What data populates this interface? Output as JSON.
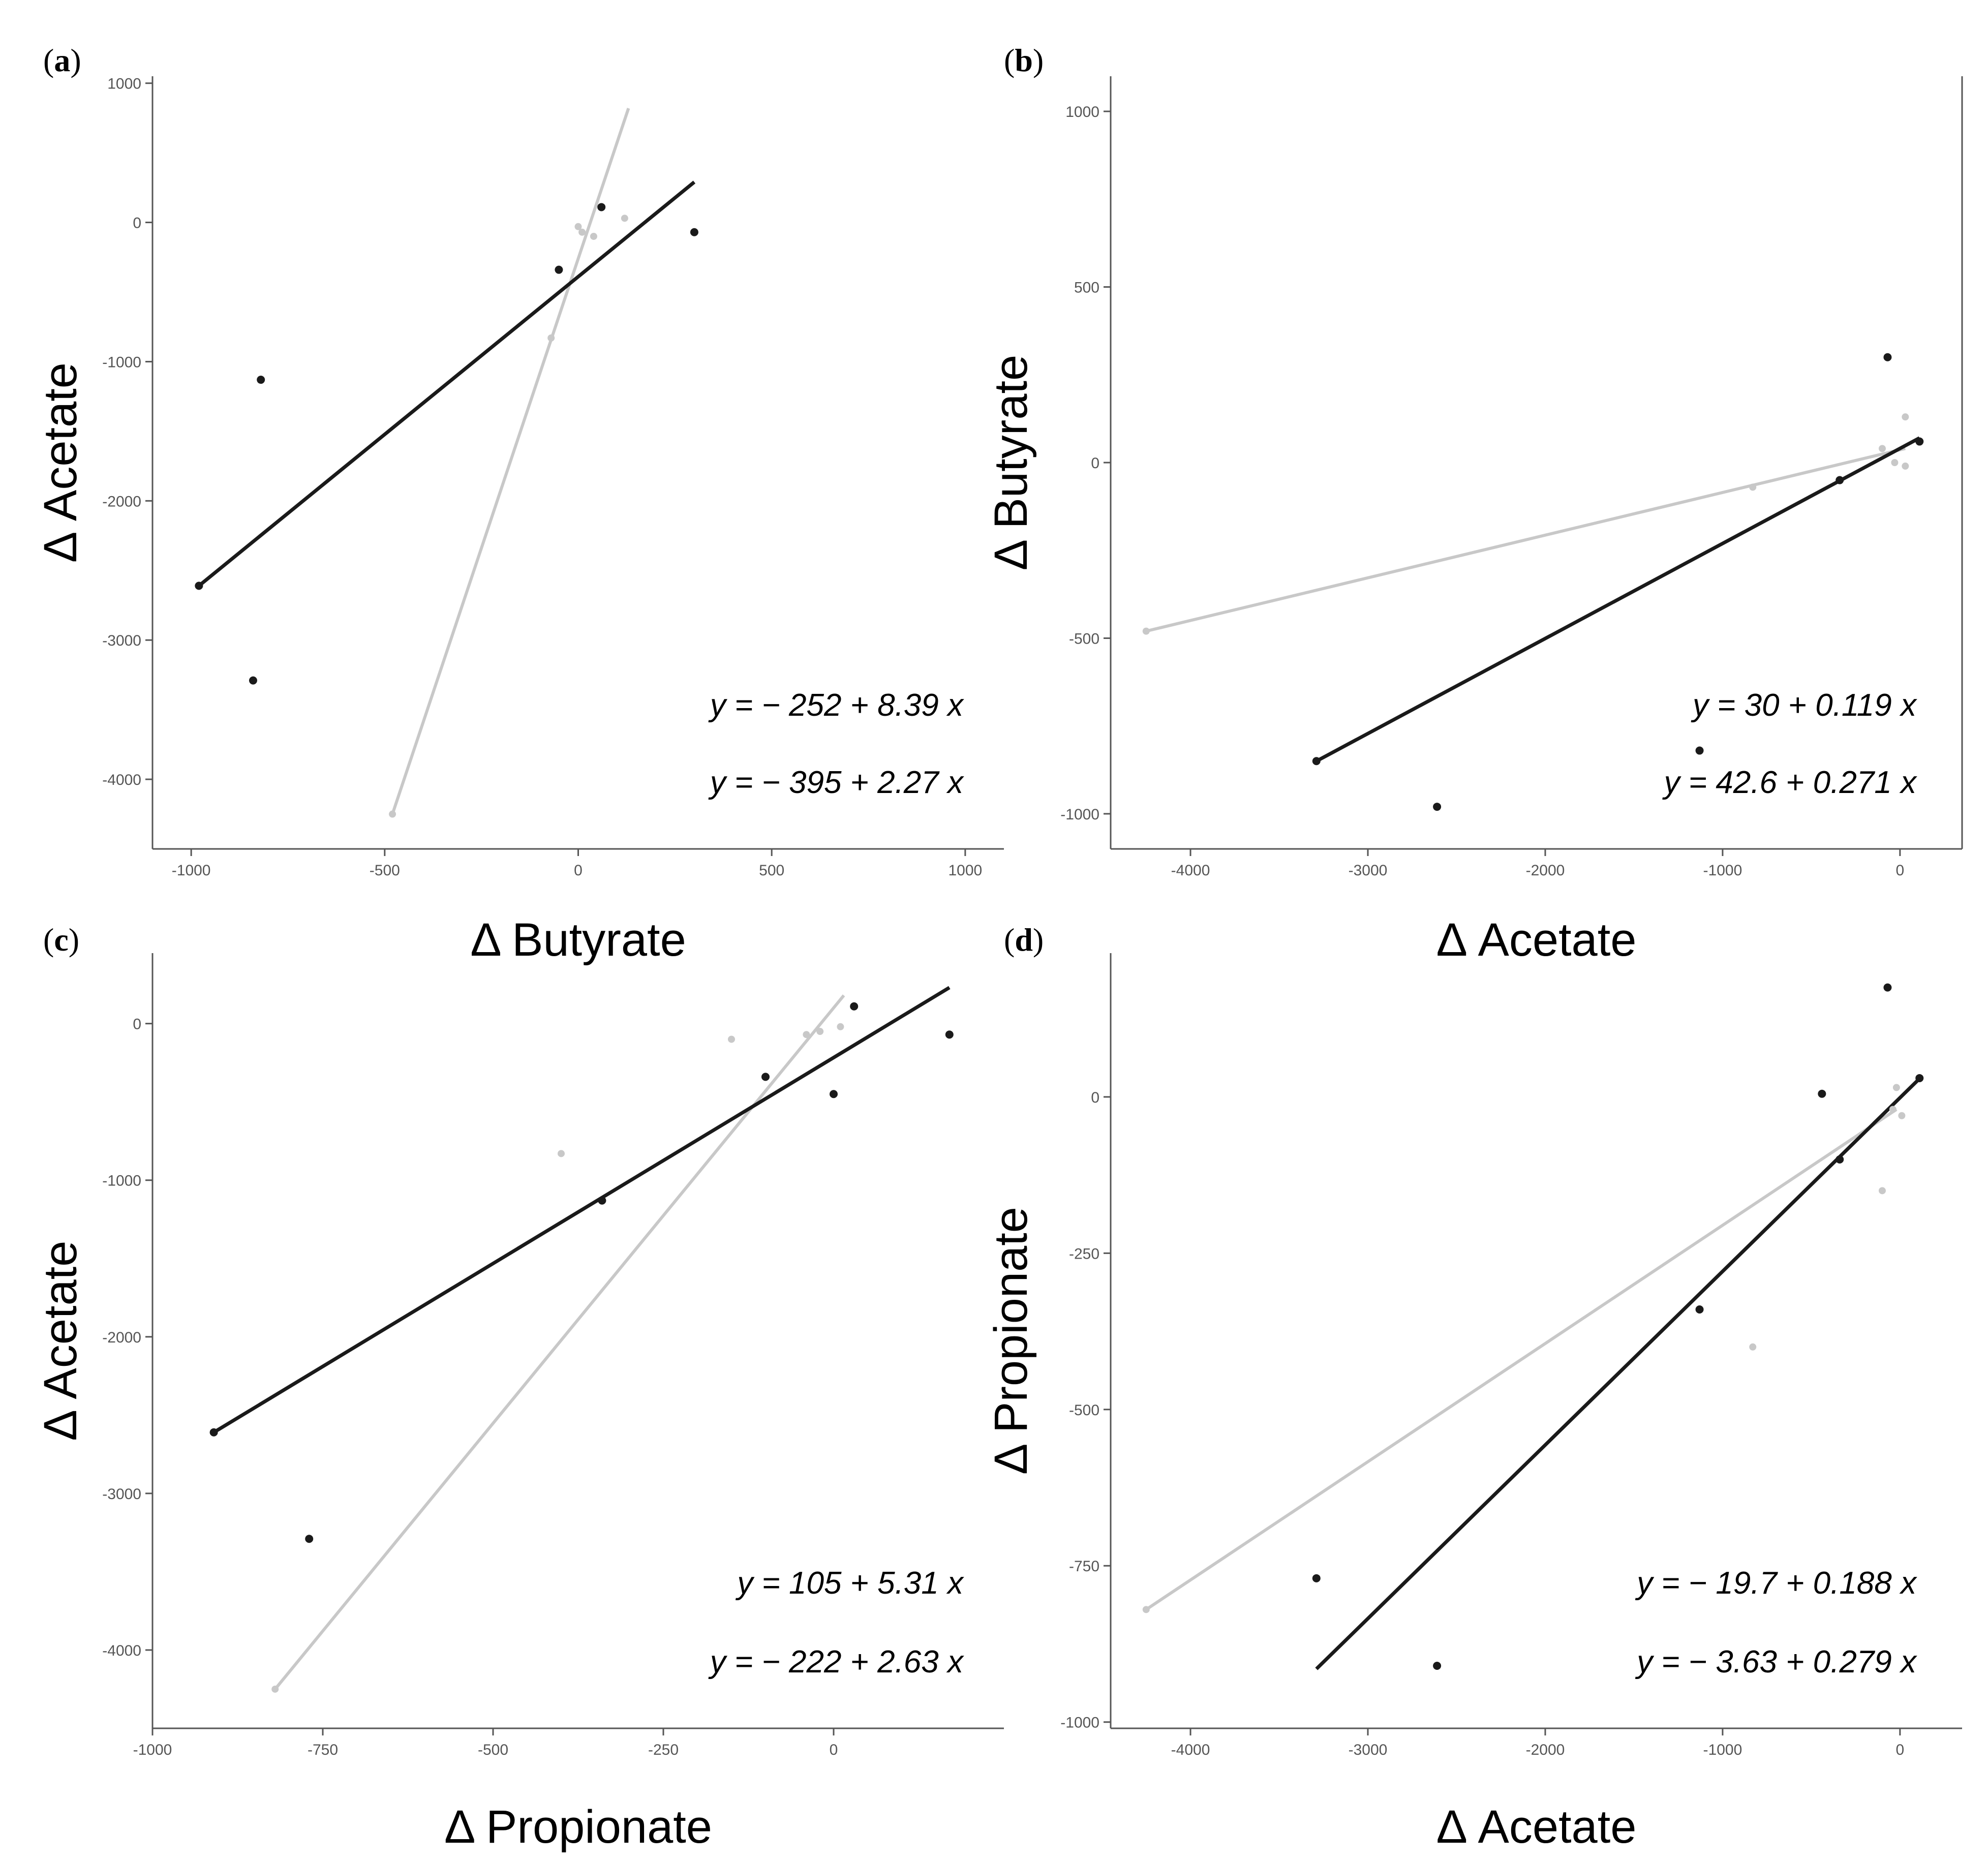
{
  "chart_data": [
    {
      "type": "scatter",
      "panel_label": "a",
      "xlabel": "Δ Butyrate",
      "ylabel": "Δ Acetate",
      "xlim": [
        -1100,
        1100
      ],
      "ylim": [
        -4500,
        1050
      ],
      "x_ticks": [
        -1000,
        -500,
        0,
        500,
        1000
      ],
      "y_ticks": [
        1000,
        0,
        -1000,
        -2000,
        -3000,
        -4000
      ],
      "x_tick_labels": [
        "-1000",
        "-500",
        "0",
        "500",
        "1000"
      ],
      "y_tick_labels": [
        "1000",
        "0",
        "-1000",
        "-2000",
        "-3000",
        "-4000"
      ],
      "equations": [
        "y = − 252 + 8.39 x",
        "y = − 395 + 2.27 x"
      ],
      "series": [
        {
          "name": "black",
          "color": "#1a1a1a",
          "points": [
            [
              -820,
              -1130
            ],
            [
              -840,
              -3290
            ],
            [
              -50,
              -340
            ],
            [
              60,
              110
            ],
            [
              300,
              -70
            ],
            [
              -980,
              -2610
            ]
          ],
          "line": [
            [
              -980,
              -2610
            ],
            [
              300,
              290
            ]
          ]
        },
        {
          "name": "gray",
          "color": "#c8c8c8",
          "points": [
            [
              -480,
              -4250
            ],
            [
              -70,
              -830
            ],
            [
              0,
              -30
            ],
            [
              10,
              -70
            ],
            [
              40,
              -100
            ],
            [
              120,
              30
            ]
          ],
          "line": [
            [
              -480,
              -4250
            ],
            [
              130,
              820
            ]
          ]
        }
      ]
    },
    {
      "type": "scatter",
      "panel_label": "b",
      "xlabel": "Δ Acetate",
      "ylabel": "Δ Butyrate",
      "xlim": [
        -4450,
        350
      ],
      "ylim": [
        -1100,
        1100
      ],
      "x_ticks": [
        -4000,
        -3000,
        -2000,
        -1000,
        0
      ],
      "y_ticks": [
        1000,
        500,
        0,
        -500,
        -1000
      ],
      "x_tick_labels": [
        "-4000",
        "-3000",
        "-2000",
        "-1000",
        "0"
      ],
      "y_tick_labels": [
        "1000",
        "500",
        "0",
        "-500",
        "-1000"
      ],
      "equations": [
        "y = 30 + 0.119 x",
        "y = 42.6 + 0.271 x"
      ],
      "series": [
        {
          "name": "black",
          "color": "#1a1a1a",
          "points": [
            [
              -3290,
              -850
            ],
            [
              -2610,
              -980
            ],
            [
              -1130,
              -820
            ],
            [
              -340,
              -50
            ],
            [
              -70,
              300
            ],
            [
              110,
              60
            ]
          ],
          "line": [
            [
              -3290,
              -850
            ],
            [
              110,
              70
            ]
          ]
        },
        {
          "name": "gray",
          "color": "#c8c8c8",
          "points": [
            [
              -4250,
              -480
            ],
            [
              -830,
              -70
            ],
            [
              -100,
              40
            ],
            [
              -30,
              0
            ],
            [
              30,
              -10
            ],
            [
              30,
              130
            ]
          ],
          "line": [
            [
              -4250,
              -480
            ],
            [
              30,
              40
            ]
          ]
        }
      ]
    },
    {
      "type": "scatter",
      "panel_label": "c",
      "xlabel": "Δ Propionate",
      "ylabel": "Δ Acetate",
      "xlim": [
        -1000,
        250
      ],
      "ylim": [
        -4500,
        450
      ],
      "x_ticks": [
        -1000,
        -750,
        -500,
        -250,
        0
      ],
      "y_ticks": [
        0,
        -1000,
        -2000,
        -3000,
        -4000
      ],
      "x_tick_labels": [
        "-1000",
        "-750",
        "-500",
        "-250",
        "0"
      ],
      "y_tick_labels": [
        "0",
        "-1000",
        "-2000",
        "-3000",
        "-4000"
      ],
      "equations": [
        "y = 105 + 5.31 x",
        "y = − 222 + 2.63 x"
      ],
      "series": [
        {
          "name": "black",
          "color": "#1a1a1a",
          "points": [
            [
              -770,
              -3290
            ],
            [
              -340,
              -1130
            ],
            [
              -100,
              -340
            ],
            [
              0,
              -450
            ],
            [
              30,
              110
            ],
            [
              170,
              -70
            ],
            [
              -910,
              -2610
            ]
          ],
          "line": [
            [
              -910,
              -2610
            ],
            [
              170,
              230
            ]
          ]
        },
        {
          "name": "gray",
          "color": "#c8c8c8",
          "points": [
            [
              -820,
              -4250
            ],
            [
              -400,
              -830
            ],
            [
              -150,
              -100
            ],
            [
              -20,
              -50
            ],
            [
              10,
              -20
            ],
            [
              -40,
              -70
            ]
          ],
          "line": [
            [
              -820,
              -4250
            ],
            [
              15,
              180
            ]
          ]
        }
      ]
    },
    {
      "type": "scatter",
      "panel_label": "d",
      "xlabel": "Δ Acetate",
      "ylabel": "Δ Propionate",
      "xlim": [
        -4450,
        350
      ],
      "ylim": [
        -1010,
        230
      ],
      "x_ticks": [
        -4000,
        -3000,
        -2000,
        -1000,
        0
      ],
      "y_ticks": [
        0,
        -250,
        -500,
        -750,
        -1000
      ],
      "x_tick_labels": [
        "-4000",
        "-3000",
        "-2000",
        "-1000",
        "0"
      ],
      "y_tick_labels": [
        "0",
        "-250",
        "-500",
        "-750",
        "-1000"
      ],
      "equations": [
        "y = − 19.7 + 0.188 x",
        "y = − 3.63 + 0.279 x"
      ],
      "series": [
        {
          "name": "black",
          "color": "#1a1a1a",
          "points": [
            [
              -3290,
              -770
            ],
            [
              -2610,
              -910
            ],
            [
              -1130,
              -340
            ],
            [
              -440,
              5
            ],
            [
              -340,
              -100
            ],
            [
              -70,
              175
            ],
            [
              110,
              30
            ]
          ],
          "line": [
            [
              -3290,
              -915
            ],
            [
              120,
              32
            ]
          ]
        },
        {
          "name": "gray",
          "color": "#c8c8c8",
          "points": [
            [
              -4250,
              -820
            ],
            [
              -830,
              -400
            ],
            [
              -100,
              -150
            ],
            [
              -40,
              -20
            ],
            [
              -20,
              15
            ],
            [
              10,
              -30
            ]
          ],
          "line": [
            [
              -4250,
              -820
            ],
            [
              -20,
              -20
            ]
          ]
        }
      ]
    }
  ]
}
